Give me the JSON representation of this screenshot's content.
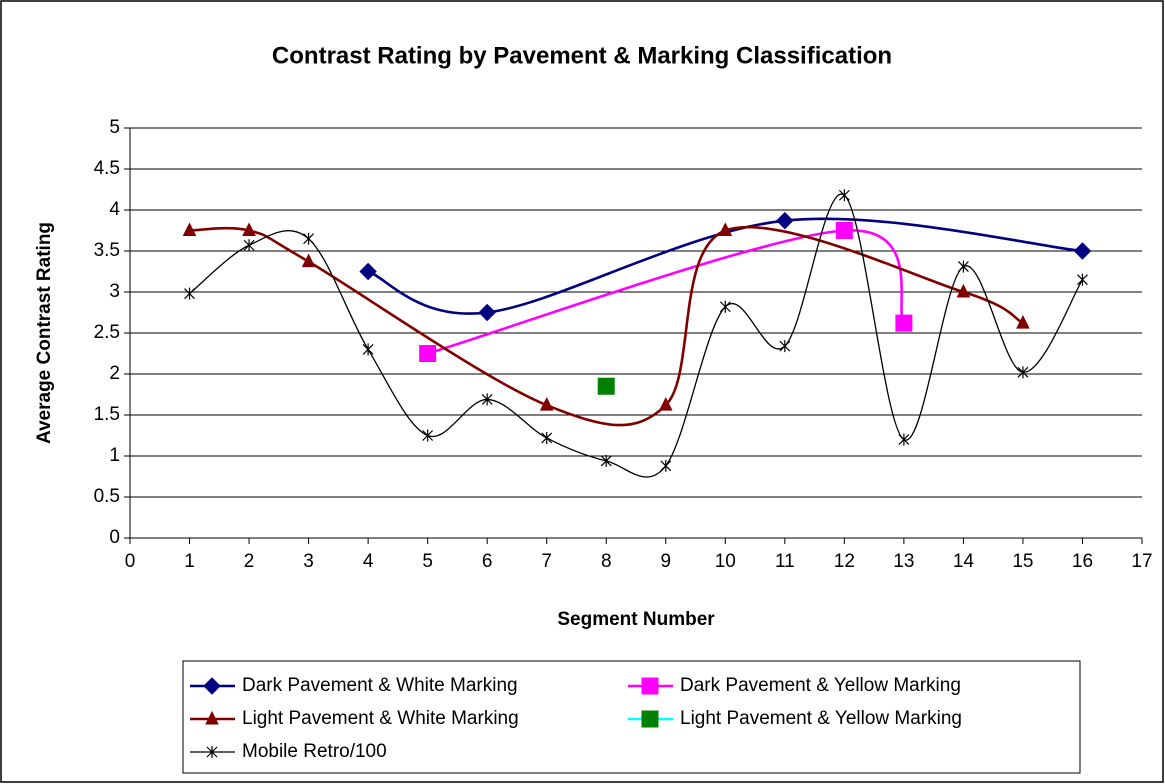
{
  "chart_data": {
    "type": "line",
    "smooth": true,
    "title": "Contrast Rating by Pavement & Marking Classification",
    "x_label": "Segment Number",
    "y_label": "Average Contrast Rating",
    "xlim": [
      0,
      17
    ],
    "xticks": [
      0,
      1,
      2,
      3,
      4,
      5,
      6,
      7,
      8,
      9,
      10,
      11,
      12,
      13,
      14,
      15,
      16,
      17
    ],
    "ylim": [
      0,
      5
    ],
    "yticks": [
      0,
      0.5,
      1,
      1.5,
      2,
      2.5,
      3,
      3.5,
      4,
      4.5,
      5
    ],
    "grid": true,
    "legend": "bottom",
    "series": [
      {
        "name": "Dark Pavement & White Marking",
        "color": "#000080",
        "marker_color": "#000080",
        "marker": "diamond",
        "x": [
          4,
          6,
          11,
          16
        ],
        "values": [
          3.25,
          2.75,
          3.87,
          3.5
        ]
      },
      {
        "name": "Dark Pavement & Yellow Marking",
        "color": "#ff00ff",
        "marker_color": "#ff00ff",
        "marker": "square",
        "x": [
          5,
          12,
          13
        ],
        "values": [
          2.25,
          3.75,
          2.62
        ]
      },
      {
        "name": "Light Pavement & White Marking",
        "color": "#800000",
        "marker_color": "#800000",
        "marker": "triangle",
        "x": [
          1,
          2,
          3,
          7,
          9,
          10,
          14,
          15
        ],
        "values": [
          3.75,
          3.75,
          3.37,
          1.62,
          1.62,
          3.75,
          3.0,
          2.62
        ]
      },
      {
        "name": "Light Pavement & Yellow Marking",
        "color": "#00ffff",
        "marker_color": "#008000",
        "marker": "square",
        "x": [
          8
        ],
        "values": [
          1.85
        ]
      },
      {
        "name": "Mobile Retro/100",
        "color": "#000000",
        "marker_color": "#000000",
        "marker": "star",
        "x": [
          1,
          2,
          3,
          4,
          5,
          6,
          7,
          8,
          9,
          10,
          11,
          12,
          13,
          14,
          15,
          16
        ],
        "values": [
          2.98,
          3.57,
          3.65,
          2.3,
          1.25,
          1.69,
          1.22,
          0.94,
          0.88,
          2.82,
          2.34,
          4.18,
          1.2,
          3.31,
          2.02,
          3.15
        ]
      }
    ]
  }
}
